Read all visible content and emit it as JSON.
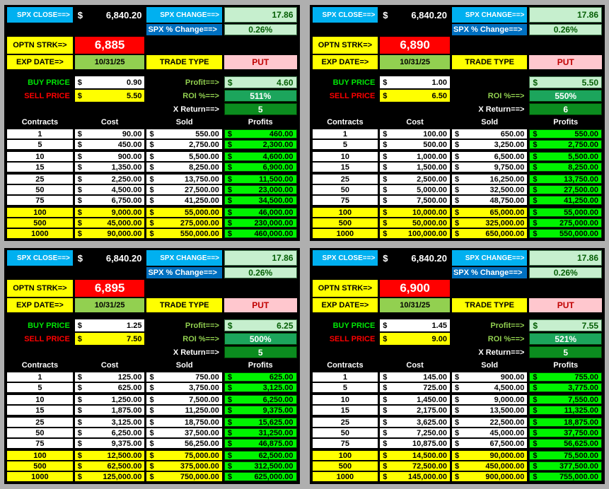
{
  "colors": {
    "page-bg": "#AFAFAF",
    "panel-bg": "#000000",
    "cyan": "#00B0F0",
    "blue": "#0070C0",
    "pale-green": "#C6EFCE",
    "pale-green-text": "#055E05",
    "yellow": "#FFFF00",
    "red": "#FF0000",
    "date-green": "#92D050",
    "pink": "#FFC7CE",
    "pink-text": "#C00000",
    "label-green": "#92D050",
    "bright-green": "#00E606",
    "roi-green": "#1CA55C",
    "xret-green": "#0B8C1F",
    "profit-cell": "#00F400"
  },
  "labels": {
    "spx_close": "SPX CLOSE==>",
    "spx_change": "SPX CHANGE==>",
    "spx_pct_change": "SPX % Change==>",
    "optn_strk": "OPTN STRK=>",
    "exp_date": "EXP DATE=>",
    "trade_type": "TRADE TYPE",
    "buy_price": "BUY PRICE",
    "sell_price": "SELL PRICE",
    "roi": "ROI %==>",
    "x_return": "X Return==>",
    "currency": "$"
  },
  "table_headers": {
    "contracts": "Contracts",
    "cost": "Cost",
    "sold": "Sold",
    "profits": "Profits"
  },
  "quadrants": [
    {
      "spx_close": "6,840.20",
      "spx_change": "17.86",
      "spx_pct": "0.26%",
      "strike": "6,885",
      "exp_date": "10/31/25",
      "trade_type": "PUT",
      "buy_price": "0.90",
      "sell_price": "5.50",
      "profit_label": "Profit==>",
      "profit": "4.60",
      "roi": "511%",
      "x_return": "5",
      "rows": [
        {
          "contracts": "1",
          "cost": "90.00",
          "sold": "550.00",
          "profits": "460.00",
          "highlight": false
        },
        {
          "contracts": "5",
          "cost": "450.00",
          "sold": "2,750.00",
          "profits": "2,300.00",
          "highlight": false
        },
        {
          "contracts": "10",
          "cost": "900.00",
          "sold": "5,500.00",
          "profits": "4,600.00",
          "highlight": false
        },
        {
          "contracts": "15",
          "cost": "1,350.00",
          "sold": "8,250.00",
          "profits": "6,900.00",
          "highlight": false
        },
        {
          "contracts": "25",
          "cost": "2,250.00",
          "sold": "13,750.00",
          "profits": "11,500.00",
          "highlight": false
        },
        {
          "contracts": "50",
          "cost": "4,500.00",
          "sold": "27,500.00",
          "profits": "23,000.00",
          "highlight": false
        },
        {
          "contracts": "75",
          "cost": "6,750.00",
          "sold": "41,250.00",
          "profits": "34,500.00",
          "highlight": false
        },
        {
          "contracts": "100",
          "cost": "9,000.00",
          "sold": "55,000.00",
          "profits": "46,000.00",
          "highlight": true
        },
        {
          "contracts": "500",
          "cost": "45,000.00",
          "sold": "275,000.00",
          "profits": "230,000.00",
          "highlight": true
        },
        {
          "contracts": "1000",
          "cost": "90,000.00",
          "sold": "550,000.00",
          "profits": "460,000.00",
          "highlight": true
        }
      ]
    },
    {
      "spx_close": "6,840.20",
      "spx_change": "17.86",
      "spx_pct": "0.26%",
      "strike": "6,890",
      "exp_date": "10/31/25",
      "trade_type": "PUT",
      "buy_price": "1.00",
      "sell_price": "6.50",
      "profit_label": "",
      "profit": "5.50",
      "roi": "550%",
      "x_return": "6",
      "rows": [
        {
          "contracts": "1",
          "cost": "100.00",
          "sold": "650.00",
          "profits": "550.00",
          "highlight": false
        },
        {
          "contracts": "5",
          "cost": "500.00",
          "sold": "3,250.00",
          "profits": "2,750.00",
          "highlight": false
        },
        {
          "contracts": "10",
          "cost": "1,000.00",
          "sold": "6,500.00",
          "profits": "5,500.00",
          "highlight": false
        },
        {
          "contracts": "15",
          "cost": "1,500.00",
          "sold": "9,750.00",
          "profits": "8,250.00",
          "highlight": false
        },
        {
          "contracts": "25",
          "cost": "2,500.00",
          "sold": "16,250.00",
          "profits": "13,750.00",
          "highlight": false
        },
        {
          "contracts": "50",
          "cost": "5,000.00",
          "sold": "32,500.00",
          "profits": "27,500.00",
          "highlight": false
        },
        {
          "contracts": "75",
          "cost": "7,500.00",
          "sold": "48,750.00",
          "profits": "41,250.00",
          "highlight": false
        },
        {
          "contracts": "100",
          "cost": "10,000.00",
          "sold": "65,000.00",
          "profits": "55,000.00",
          "highlight": true
        },
        {
          "contracts": "500",
          "cost": "50,000.00",
          "sold": "325,000.00",
          "profits": "275,000.00",
          "highlight": true
        },
        {
          "contracts": "1000",
          "cost": "100,000.00",
          "sold": "650,000.00",
          "profits": "550,000.00",
          "highlight": true
        }
      ]
    },
    {
      "spx_close": "6,840.20",
      "spx_change": "17.86",
      "spx_pct": "0.26%",
      "strike": "6,895",
      "exp_date": "10/31/25",
      "trade_type": "PUT",
      "buy_price": "1.25",
      "sell_price": "7.50",
      "profit_label": "Profit==>",
      "profit": "6.25",
      "roi": "500%",
      "x_return": "5",
      "rows": [
        {
          "contracts": "1",
          "cost": "125.00",
          "sold": "750.00",
          "profits": "625.00",
          "highlight": false
        },
        {
          "contracts": "5",
          "cost": "625.00",
          "sold": "3,750.00",
          "profits": "3,125.00",
          "highlight": false
        },
        {
          "contracts": "10",
          "cost": "1,250.00",
          "sold": "7,500.00",
          "profits": "6,250.00",
          "highlight": false
        },
        {
          "contracts": "15",
          "cost": "1,875.00",
          "sold": "11,250.00",
          "profits": "9,375.00",
          "highlight": false
        },
        {
          "contracts": "25",
          "cost": "3,125.00",
          "sold": "18,750.00",
          "profits": "15,625.00",
          "highlight": false
        },
        {
          "contracts": "50",
          "cost": "6,250.00",
          "sold": "37,500.00",
          "profits": "31,250.00",
          "highlight": false
        },
        {
          "contracts": "75",
          "cost": "9,375.00",
          "sold": "56,250.00",
          "profits": "46,875.00",
          "highlight": false
        },
        {
          "contracts": "100",
          "cost": "12,500.00",
          "sold": "75,000.00",
          "profits": "62,500.00",
          "highlight": true
        },
        {
          "contracts": "500",
          "cost": "62,500.00",
          "sold": "375,000.00",
          "profits": "312,500.00",
          "highlight": true
        },
        {
          "contracts": "1000",
          "cost": "125,000.00",
          "sold": "750,000.00",
          "profits": "625,000.00",
          "highlight": true
        }
      ]
    },
    {
      "spx_close": "6,840.20",
      "spx_change": "17.86",
      "spx_pct": "0.26%",
      "strike": "6,900",
      "exp_date": "10/31/25",
      "trade_type": "PUT",
      "buy_price": "1.45",
      "sell_price": "9.00",
      "profit_label": "Profit==>",
      "profit": "7.55",
      "roi": "521%",
      "x_return": "5",
      "rows": [
        {
          "contracts": "1",
          "cost": "145.00",
          "sold": "900.00",
          "profits": "755.00",
          "highlight": false
        },
        {
          "contracts": "5",
          "cost": "725.00",
          "sold": "4,500.00",
          "profits": "3,775.00",
          "highlight": false
        },
        {
          "contracts": "10",
          "cost": "1,450.00",
          "sold": "9,000.00",
          "profits": "7,550.00",
          "highlight": false
        },
        {
          "contracts": "15",
          "cost": "2,175.00",
          "sold": "13,500.00",
          "profits": "11,325.00",
          "highlight": false
        },
        {
          "contracts": "25",
          "cost": "3,625.00",
          "sold": "22,500.00",
          "profits": "18,875.00",
          "highlight": false
        },
        {
          "contracts": "50",
          "cost": "7,250.00",
          "sold": "45,000.00",
          "profits": "37,750.00",
          "highlight": false
        },
        {
          "contracts": "75",
          "cost": "10,875.00",
          "sold": "67,500.00",
          "profits": "56,625.00",
          "highlight": false
        },
        {
          "contracts": "100",
          "cost": "14,500.00",
          "sold": "90,000.00",
          "profits": "75,500.00",
          "highlight": true
        },
        {
          "contracts": "500",
          "cost": "72,500.00",
          "sold": "450,000.00",
          "profits": "377,500.00",
          "highlight": true
        },
        {
          "contracts": "1000",
          "cost": "145,000.00",
          "sold": "900,000.00",
          "profits": "755,000.00",
          "highlight": true
        }
      ]
    }
  ]
}
